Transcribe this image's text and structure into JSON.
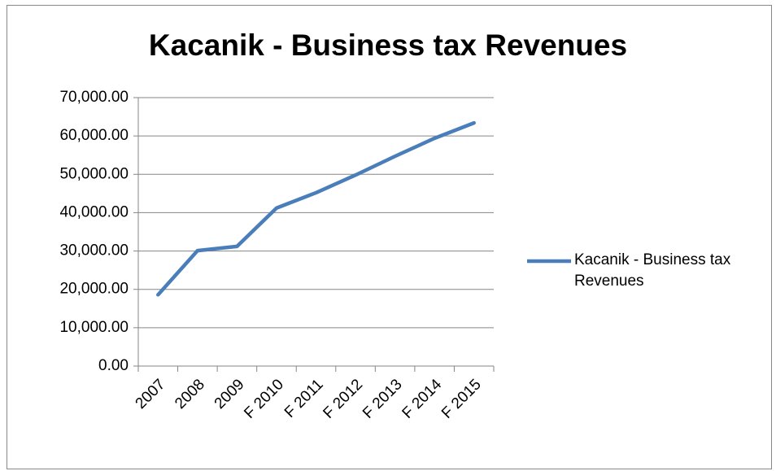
{
  "chart_data": {
    "type": "line",
    "title": "Kacanik - Business tax Revenues",
    "categories": [
      "2007",
      "2008",
      "2009",
      "F 2010",
      "F 2011",
      "F 2012",
      "F 2013",
      "F 2014",
      "F 2015"
    ],
    "series": [
      {
        "name": "Kacanik - Business tax Revenues",
        "color": "#4a7ebb",
        "values": [
          18600,
          30100,
          31200,
          41200,
          45200,
          49800,
          54700,
          59400,
          63400
        ]
      }
    ],
    "ylim": [
      0,
      70000
    ],
    "yticks": [
      {
        "value": 0,
        "label": "0.00"
      },
      {
        "value": 10000,
        "label": "10,000.00"
      },
      {
        "value": 20000,
        "label": "20,000.00"
      },
      {
        "value": 30000,
        "label": "30,000.00"
      },
      {
        "value": 40000,
        "label": "40,000.00"
      },
      {
        "value": 50000,
        "label": "50,000.00"
      },
      {
        "value": 60000,
        "label": "60,000.00"
      },
      {
        "value": 70000,
        "label": "70,000.00"
      }
    ],
    "grid": true,
    "legend": "right"
  }
}
